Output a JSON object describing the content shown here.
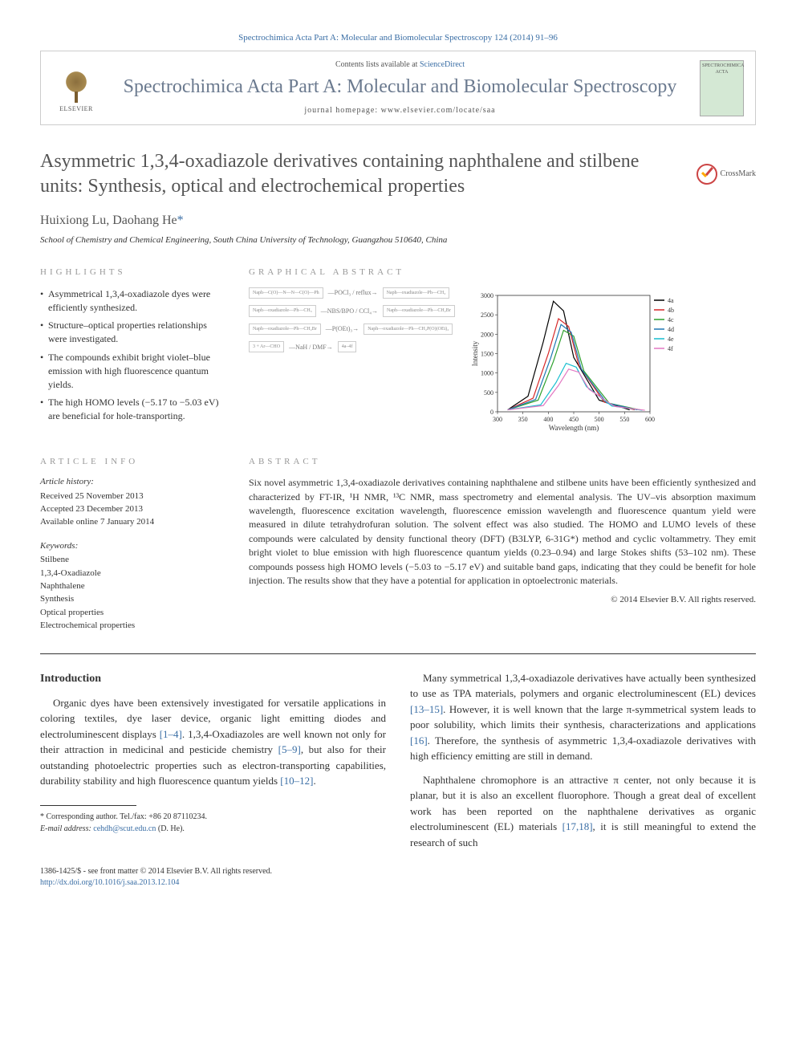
{
  "header": {
    "citation": "Spectrochimica Acta Part A: Molecular and Biomolecular Spectroscopy 124 (2014) 91–96",
    "contents_text": "Contents lists available at ",
    "sciencedirect": "ScienceDirect",
    "journal_name": "Spectrochimica Acta Part A: Molecular and Biomolecular Spectroscopy",
    "homepage_label": "journal homepage: www.elsevier.com/locate/saa",
    "elsevier_label": "ELSEVIER",
    "cover_label": "SPECTROCHIMICA ACTA"
  },
  "article": {
    "title": "Asymmetric 1,3,4-oxadiazole derivatives containing naphthalene and stilbene units: Synthesis, optical and electrochemical properties",
    "crossmark": "CrossMark",
    "authors": "Huixiong Lu, Daohang He",
    "corr_mark": "*",
    "affiliation": "School of Chemistry and Chemical Engineering, South China University of Technology, Guangzhou 510640, China"
  },
  "highlights": {
    "heading": "HIGHLIGHTS",
    "items": [
      "Asymmetrical 1,3,4-oxadiazole dyes were efficiently synthesized.",
      "Structure–optical properties relationships were investigated.",
      "The compounds exhibit bright violet–blue emission with high fluorescence quantum yields.",
      "The high HOMO levels (−5.17 to −5.03 eV) are beneficial for hole-transporting."
    ]
  },
  "graphical": {
    "heading": "GRAPHICAL ABSTRACT",
    "schemes": [
      {
        "left": "Naph—C(O)—N—N—C(O)—Ph",
        "cond": "POCl₃ / reflux",
        "right": "Naph—oxadiazole—Ph—CH₃"
      },
      {
        "left": "Naph—oxadiazole—Ph—CH₃",
        "cond": "NBS/BPO / CCl₄",
        "right": "Naph—oxadiazole—Ph—CH₂Br"
      },
      {
        "left": "Naph—oxadiazole—Ph—CH₂Br",
        "cond": "P(OEt)₃",
        "right": "Naph—oxadiazole—Ph—CH₂P(O)(OEt)₂"
      },
      {
        "left": "3 + Ar—CHO",
        "cond": "NaH / DMF",
        "right": "4a–4f"
      }
    ],
    "chart": {
      "type": "line",
      "xlabel": "Wavelength (nm)",
      "ylabel": "Intensity",
      "xlim": [
        300,
        600
      ],
      "xtick_step": 50,
      "ylim": [
        0,
        3000
      ],
      "ytick_step": 500,
      "title_fontsize": 9,
      "label_fontsize": 8,
      "background_color": "#ffffff",
      "axis_color": "#333333",
      "series": [
        {
          "name": "4a",
          "color": "#000000",
          "x": [
            320,
            360,
            390,
            410,
            430,
            450,
            500,
            560
          ],
          "y": [
            50,
            400,
            1800,
            2850,
            2600,
            1400,
            300,
            50
          ]
        },
        {
          "name": "4b",
          "color": "#d62728",
          "x": [
            320,
            370,
            400,
            420,
            440,
            460,
            510,
            570
          ],
          "y": [
            50,
            350,
            1500,
            2400,
            2200,
            1200,
            250,
            50
          ]
        },
        {
          "name": "4c",
          "color": "#2ca02c",
          "x": [
            320,
            380,
            410,
            430,
            450,
            470,
            520,
            580
          ],
          "y": [
            50,
            300,
            1300,
            2100,
            1950,
            1050,
            220,
            50
          ]
        },
        {
          "name": "4d",
          "color": "#1f77b4",
          "x": [
            320,
            375,
            405,
            425,
            445,
            465,
            515,
            575
          ],
          "y": [
            50,
            320,
            1400,
            2250,
            2050,
            1100,
            230,
            50
          ]
        },
        {
          "name": "4e",
          "color": "#17becf",
          "x": [
            320,
            385,
            415,
            435,
            455,
            475,
            525,
            585
          ],
          "y": [
            50,
            180,
            750,
            1250,
            1150,
            650,
            150,
            40
          ]
        },
        {
          "name": "4f",
          "color": "#e377c2",
          "x": [
            320,
            390,
            420,
            440,
            460,
            480,
            530,
            590
          ],
          "y": [
            50,
            160,
            680,
            1100,
            1020,
            580,
            140,
            40
          ]
        }
      ]
    }
  },
  "info": {
    "heading": "ARTICLE INFO",
    "history_label": "Article history:",
    "history": [
      "Received 25 November 2013",
      "Accepted 23 December 2013",
      "Available online 7 January 2014"
    ],
    "keywords_label": "Keywords:",
    "keywords": [
      "Stilbene",
      "1,3,4-Oxadiazole",
      "Naphthalene",
      "Synthesis",
      "Optical properties",
      "Electrochemical properties"
    ]
  },
  "abstract": {
    "heading": "ABSTRACT",
    "text": "Six novel asymmetric 1,3,4-oxadiazole derivatives containing naphthalene and stilbene units have been efficiently synthesized and characterized by FT-IR, ¹H NMR, ¹³C NMR, mass spectrometry and elemental analysis. The UV–vis absorption maximum wavelength, fluorescence excitation wavelength, fluorescence emission wavelength and fluorescence quantum yield were measured in dilute tetrahydrofuran solution. The solvent effect was also studied. The HOMO and LUMO levels of these compounds were calculated by density functional theory (DFT) (B3LYP, 6-31G*) method and cyclic voltammetry. They emit bright violet to blue emission with high fluorescence quantum yields (0.23–0.94) and large Stokes shifts (53–102 nm). These compounds possess high HOMO levels (−5.03 to −5.17 eV) and suitable band gaps, indicating that they could be benefit for hole injection. The results show that they have a potential for application in optoelectronic materials.",
    "copyright": "© 2014 Elsevier B.V. All rights reserved."
  },
  "body": {
    "intro_heading": "Introduction",
    "p1_a": "Organic dyes have been extensively investigated for versatile applications in coloring textiles, dye laser device, organic light emitting diodes and electroluminescent displays ",
    "p1_cite1": "[1–4]",
    "p1_b": ". 1,3,4-Oxadiazoles are well known not only for their attraction in medicinal and pesticide chemistry ",
    "p1_cite2": "[5–9]",
    "p1_c": ", but also for their outstanding photoelectric properties such as electron-transporting capabilities, durability stability and high fluorescence quantum yields ",
    "p1_cite3": "[10–12]",
    "p1_d": ".",
    "p2_a": "Many symmetrical 1,3,4-oxadiazole derivatives have actually been synthesized to use as TPA materials, polymers and organic electroluminescent (EL) devices ",
    "p2_cite1": "[13–15]",
    "p2_b": ". However, it is well known that the large π-symmetrical system leads to poor solubility, which limits their synthesis, characterizations and applications ",
    "p2_cite2": "[16]",
    "p2_c": ". Therefore, the synthesis of asymmetric 1,3,4-oxadiazole derivatives with high efficiency emitting are still in demand.",
    "p3_a": "Naphthalene chromophore is an attractive π center, not only because it is planar, but it is also an excellent fluorophore. Though a great deal of excellent work has been reported on the naphthalene derivatives as organic electroluminescent (EL) materials ",
    "p3_cite1": "[17,18]",
    "p3_b": ", it is still meaningful to extend the research of such"
  },
  "footnote": {
    "corr_label": "* Corresponding author. Tel./fax: +86 20 87110234.",
    "email_label": "E-mail address:",
    "email": "cehdh@scut.edu.cn",
    "email_name": "(D. He)."
  },
  "footer": {
    "line1": "1386-1425/$ - see front matter © 2014 Elsevier B.V. All rights reserved.",
    "doi": "http://dx.doi.org/10.1016/j.saa.2013.12.104"
  }
}
